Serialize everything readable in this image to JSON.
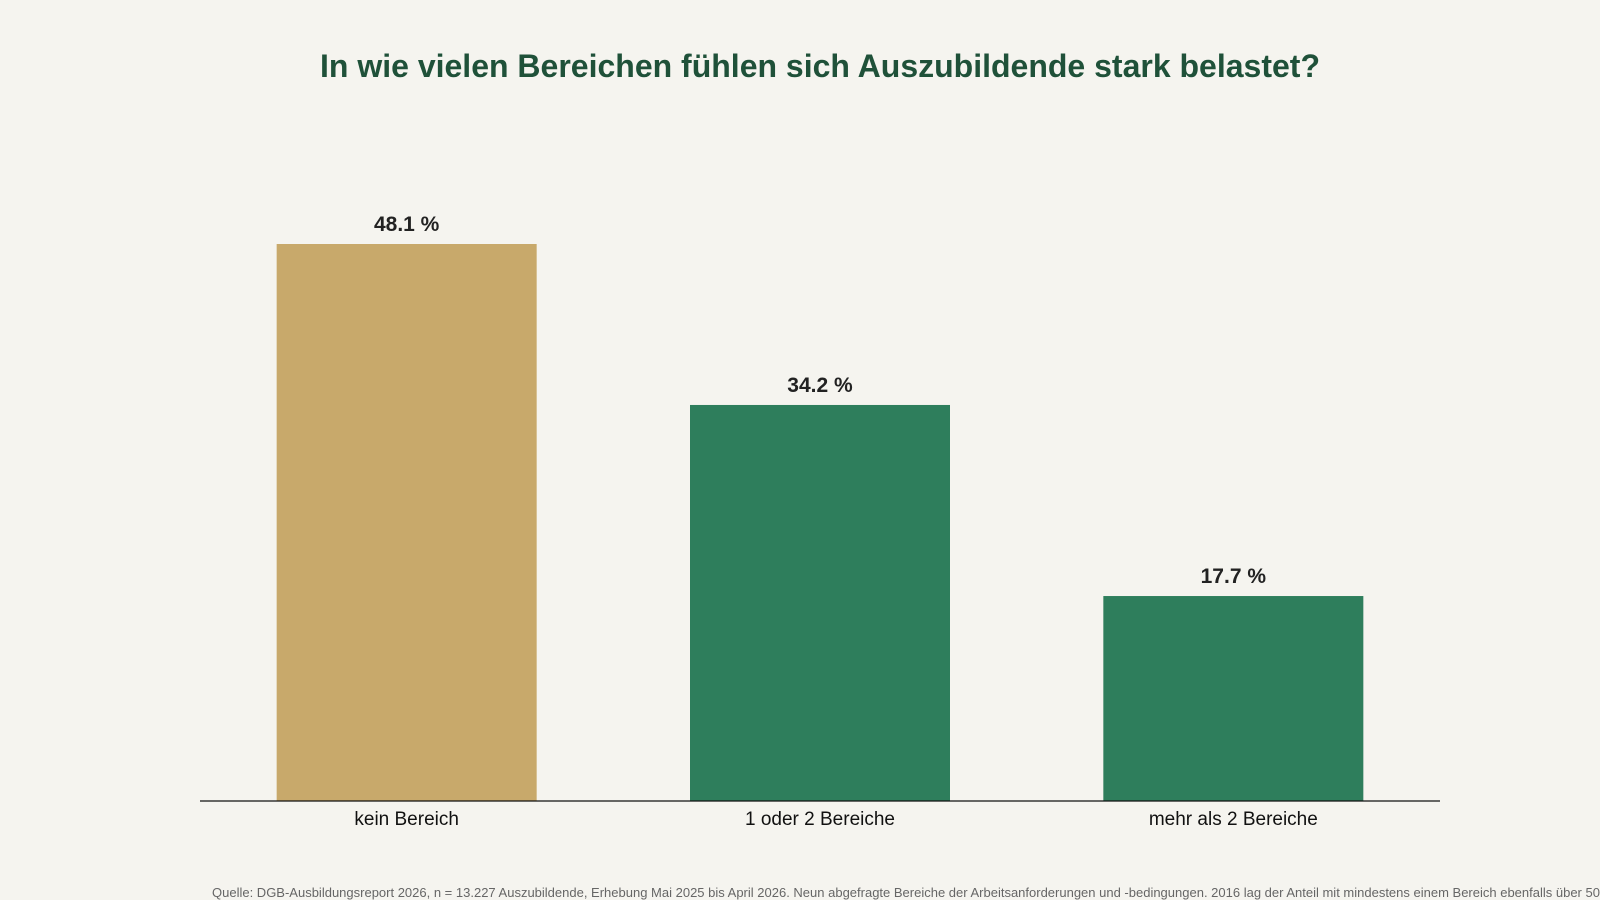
{
  "chart_data": {
    "type": "bar",
    "title": "In wie vielen Bereichen fühlen sich Auszubildende stark belastet?",
    "categories": [
      "kein Bereich",
      "1 oder 2 Bereiche",
      "mehr als 2 Bereiche"
    ],
    "values": [
      48.1,
      34.2,
      17.7
    ],
    "value_labels": [
      "48.1 %",
      "34.2 %",
      "17.7 %"
    ],
    "bar_colors": [
      "#c8a96b",
      "#2e7e5c",
      "#2e7e5c"
    ],
    "ylim": [
      0,
      50
    ],
    "grid": false,
    "xlabel": "",
    "ylabel": ""
  },
  "source_note": "Quelle: DGB-Ausbildungsreport 2026, n = 13.227 Auszubildende, Erhebung Mai 2025 bis April 2026. Neun abgefragte Bereiche der Arbeitsanforderungen und -bedingungen. 2016 lag der Anteil mit mindestens einem Bereich ebenfalls über 50"
}
